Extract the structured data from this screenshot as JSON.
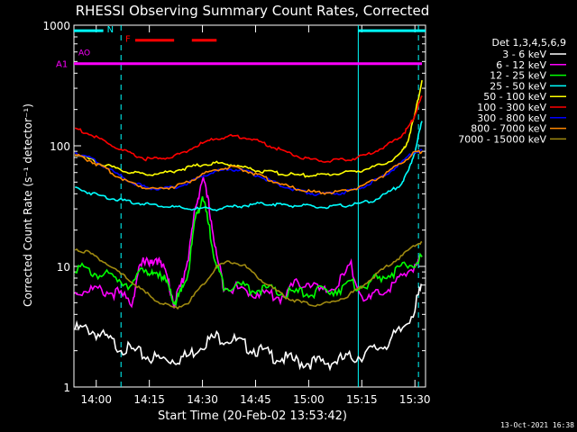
{
  "chart_data": {
    "type": "line",
    "title": "RHESSI Observing Summary Count Rates, Corrected",
    "xlabel": "Start Time (20-Feb-02 13:53:42)",
    "ylabel": "Corrected Count Rate (s⁻¹ detector⁻¹)",
    "x_scale": "time",
    "y_scale": "log",
    "xlim": [
      "13:53:42",
      "15:33:00"
    ],
    "ylim": [
      1,
      1000
    ],
    "x_ticks": [
      "14:00",
      "14:15",
      "14:30",
      "14:45",
      "15:00",
      "15:15",
      "15:30"
    ],
    "y_ticks": [
      {
        "value": 1,
        "label": "1"
      },
      {
        "value": 10,
        "label": "10"
      },
      {
        "value": 100,
        "label": "100"
      },
      {
        "value": 1000,
        "label": "1000"
      }
    ],
    "legend_header": "Det 1,3,4,5,6,9",
    "legend_position": "right",
    "series": [
      {
        "name": "3 - 6 keV",
        "color": "#ffffff",
        "x": [
          "13:54",
          "13:58",
          "14:02",
          "14:06",
          "14:10",
          "14:14",
          "14:18",
          "14:22",
          "14:26",
          "14:30",
          "14:34",
          "14:38",
          "14:42",
          "14:46",
          "14:50",
          "14:54",
          "14:58",
          "15:02",
          "15:06",
          "15:10",
          "15:14",
          "15:18",
          "15:22",
          "15:26",
          "15:30",
          "15:32"
        ],
        "values": [
          3,
          3,
          2.6,
          2.2,
          2,
          1.8,
          1.7,
          1.7,
          1.8,
          2.3,
          2.6,
          2.5,
          2.2,
          2,
          1.8,
          1.7,
          1.6,
          1.6,
          1.6,
          1.7,
          1.8,
          2,
          2.3,
          2.9,
          4.5,
          7
        ]
      },
      {
        "name": "6 - 12 keV",
        "color": "#ff00ff",
        "x": [
          "13:54",
          "13:58",
          "14:02",
          "14:06",
          "14:10",
          "14:12",
          "14:14",
          "14:16",
          "14:18",
          "14:20",
          "14:22",
          "14:24",
          "14:26",
          "14:28",
          "14:30",
          "14:32",
          "14:34",
          "14:36",
          "14:40",
          "14:44",
          "14:48",
          "14:52",
          "14:56",
          "15:00",
          "15:04",
          "15:08",
          "15:12",
          "15:16",
          "15:20",
          "15:24",
          "15:28",
          "15:32"
        ],
        "values": [
          6,
          6.5,
          6.2,
          6,
          5,
          9,
          12,
          10,
          12,
          8,
          5,
          7,
          12,
          30,
          55,
          30,
          12,
          7,
          6.5,
          6,
          6,
          5.5,
          7,
          7.5,
          6,
          7,
          10,
          5,
          6,
          7,
          9,
          12
        ]
      },
      {
        "name": "12 - 25 keV",
        "color": "#00ff00",
        "x": [
          "13:54",
          "13:58",
          "14:02",
          "14:06",
          "14:10",
          "14:14",
          "14:16",
          "14:18",
          "14:20",
          "14:22",
          "14:24",
          "14:26",
          "14:28",
          "14:30",
          "14:32",
          "14:34",
          "14:36",
          "14:40",
          "14:44",
          "14:48",
          "14:52",
          "14:56",
          "15:00",
          "15:04",
          "15:08",
          "15:12",
          "15:16",
          "15:20",
          "15:24",
          "15:28",
          "15:32"
        ],
        "values": [
          10,
          9,
          8.5,
          8,
          7,
          10,
          8,
          9,
          7,
          5,
          6,
          9,
          25,
          38,
          20,
          10,
          7,
          7,
          6.5,
          6.5,
          6,
          6,
          6,
          6.2,
          6.5,
          7,
          7,
          8,
          9,
          10,
          12
        ]
      },
      {
        "name": "25 - 50 keV",
        "color": "#00ffff",
        "x": [
          "13:54",
          "13:58",
          "14:02",
          "14:06",
          "14:10",
          "14:14",
          "14:18",
          "14:22",
          "14:26",
          "14:30",
          "14:34",
          "14:38",
          "14:42",
          "14:46",
          "14:50",
          "14:54",
          "14:58",
          "15:02",
          "15:06",
          "15:10",
          "15:14",
          "15:18",
          "15:22",
          "15:26",
          "15:28",
          "15:30",
          "15:32"
        ],
        "values": [
          45,
          41,
          38,
          36,
          34,
          33,
          32,
          31,
          30,
          30,
          30,
          31,
          32,
          33,
          33,
          32,
          32,
          31,
          31,
          32,
          33,
          35,
          40,
          48,
          60,
          90,
          160
        ]
      },
      {
        "name": "50 - 100 keV",
        "color": "#ffff00",
        "x": [
          "13:54",
          "13:58",
          "14:02",
          "14:06",
          "14:10",
          "14:14",
          "14:18",
          "14:22",
          "14:26",
          "14:30",
          "14:34",
          "14:38",
          "14:42",
          "14:46",
          "14:50",
          "14:54",
          "14:58",
          "15:02",
          "15:06",
          "15:10",
          "15:14",
          "15:18",
          "15:22",
          "15:26",
          "15:28",
          "15:30",
          "15:32"
        ],
        "values": [
          85,
          78,
          70,
          64,
          60,
          58,
          59,
          62,
          66,
          70,
          72,
          70,
          66,
          62,
          60,
          58,
          57,
          57,
          58,
          60,
          62,
          66,
          72,
          85,
          110,
          180,
          350
        ]
      },
      {
        "name": "100 - 300 keV",
        "color": "#ff0000",
        "x": [
          "13:54",
          "13:58",
          "14:02",
          "14:06",
          "14:10",
          "14:14",
          "14:18",
          "14:22",
          "14:26",
          "14:30",
          "14:34",
          "14:38",
          "14:42",
          "14:46",
          "14:50",
          "14:54",
          "14:58",
          "15:02",
          "15:06",
          "15:10",
          "15:14",
          "15:18",
          "15:22",
          "15:26",
          "15:28",
          "15:30",
          "15:32"
        ],
        "values": [
          140,
          125,
          110,
          95,
          85,
          78,
          78,
          82,
          92,
          105,
          115,
          120,
          118,
          108,
          98,
          88,
          80,
          76,
          75,
          76,
          80,
          88,
          100,
          120,
          140,
          180,
          260
        ]
      },
      {
        "name": "300 - 800 keV",
        "color": "#0000ff",
        "x": [
          "13:54",
          "13:58",
          "14:02",
          "14:06",
          "14:10",
          "14:14",
          "14:18",
          "14:22",
          "14:26",
          "14:30",
          "14:34",
          "14:38",
          "14:42",
          "14:46",
          "14:50",
          "14:54",
          "14:58",
          "15:02",
          "15:06",
          "15:10",
          "15:14",
          "15:18",
          "15:22",
          "15:26",
          "15:30",
          "15:32"
        ],
        "values": [
          88,
          80,
          68,
          58,
          50,
          45,
          44,
          45,
          49,
          56,
          62,
          64,
          62,
          56,
          50,
          45,
          42,
          40,
          40,
          41,
          44,
          50,
          58,
          72,
          90,
          92
        ]
      },
      {
        "name": "800 - 7000 keV",
        "color": "#ff8800",
        "x": [
          "13:54",
          "13:58",
          "14:02",
          "14:06",
          "14:10",
          "14:14",
          "14:18",
          "14:22",
          "14:26",
          "14:30",
          "14:34",
          "14:38",
          "14:42",
          "14:46",
          "14:50",
          "14:54",
          "14:58",
          "15:02",
          "15:06",
          "15:10",
          "15:14",
          "15:18",
          "15:22",
          "15:26",
          "15:30",
          "15:32"
        ],
        "values": [
          84,
          76,
          66,
          56,
          49,
          45,
          44,
          46,
          50,
          58,
          64,
          66,
          63,
          57,
          51,
          46,
          43,
          41,
          41,
          42,
          45,
          51,
          59,
          72,
          88,
          90
        ]
      },
      {
        "name": "7000 - 15000 keV",
        "color": "#a08a10",
        "x": [
          "13:54",
          "13:58",
          "14:02",
          "14:06",
          "14:10",
          "14:14",
          "14:18",
          "14:22",
          "14:26",
          "14:30",
          "14:34",
          "14:38",
          "14:42",
          "14:46",
          "14:50",
          "14:54",
          "14:58",
          "15:02",
          "15:06",
          "15:10",
          "15:14",
          "15:18",
          "15:22",
          "15:26",
          "15:30",
          "15:32"
        ],
        "values": [
          14,
          13,
          11,
          9,
          7.5,
          6,
          5,
          4.5,
          5,
          7,
          10,
          11,
          10,
          8,
          6.5,
          5.5,
          5,
          4.8,
          5,
          5.5,
          6.5,
          8,
          10,
          12,
          15,
          16
        ]
      }
    ],
    "annotations": [
      {
        "text": "N",
        "color": "#00ffff",
        "kind": "state-bar",
        "y": 900,
        "segments": [
          [
            "13:53:42",
            "14:02"
          ],
          [
            "15:14",
            "15:33"
          ]
        ]
      },
      {
        "text": "F",
        "color": "#ff0000",
        "kind": "state-bar",
        "y": 750,
        "segments": [
          [
            "14:11",
            "14:22"
          ],
          [
            "14:27",
            "14:34"
          ]
        ]
      },
      {
        "text": "A1",
        "color": "#ff00ff",
        "kind": "attenuator-line",
        "y": 480
      },
      {
        "text": "AO",
        "color": "#ff00ff",
        "kind": "label",
        "y": 590
      }
    ],
    "markers": [
      {
        "x": "14:07",
        "style": "dashed",
        "color": "#00ffff"
      },
      {
        "x": "15:14",
        "style": "solid",
        "color": "#00ffff"
      },
      {
        "x": "15:31",
        "style": "dashed",
        "color": "#00ffff"
      }
    ],
    "timestamp": "13-Oct-2021 16:38"
  }
}
